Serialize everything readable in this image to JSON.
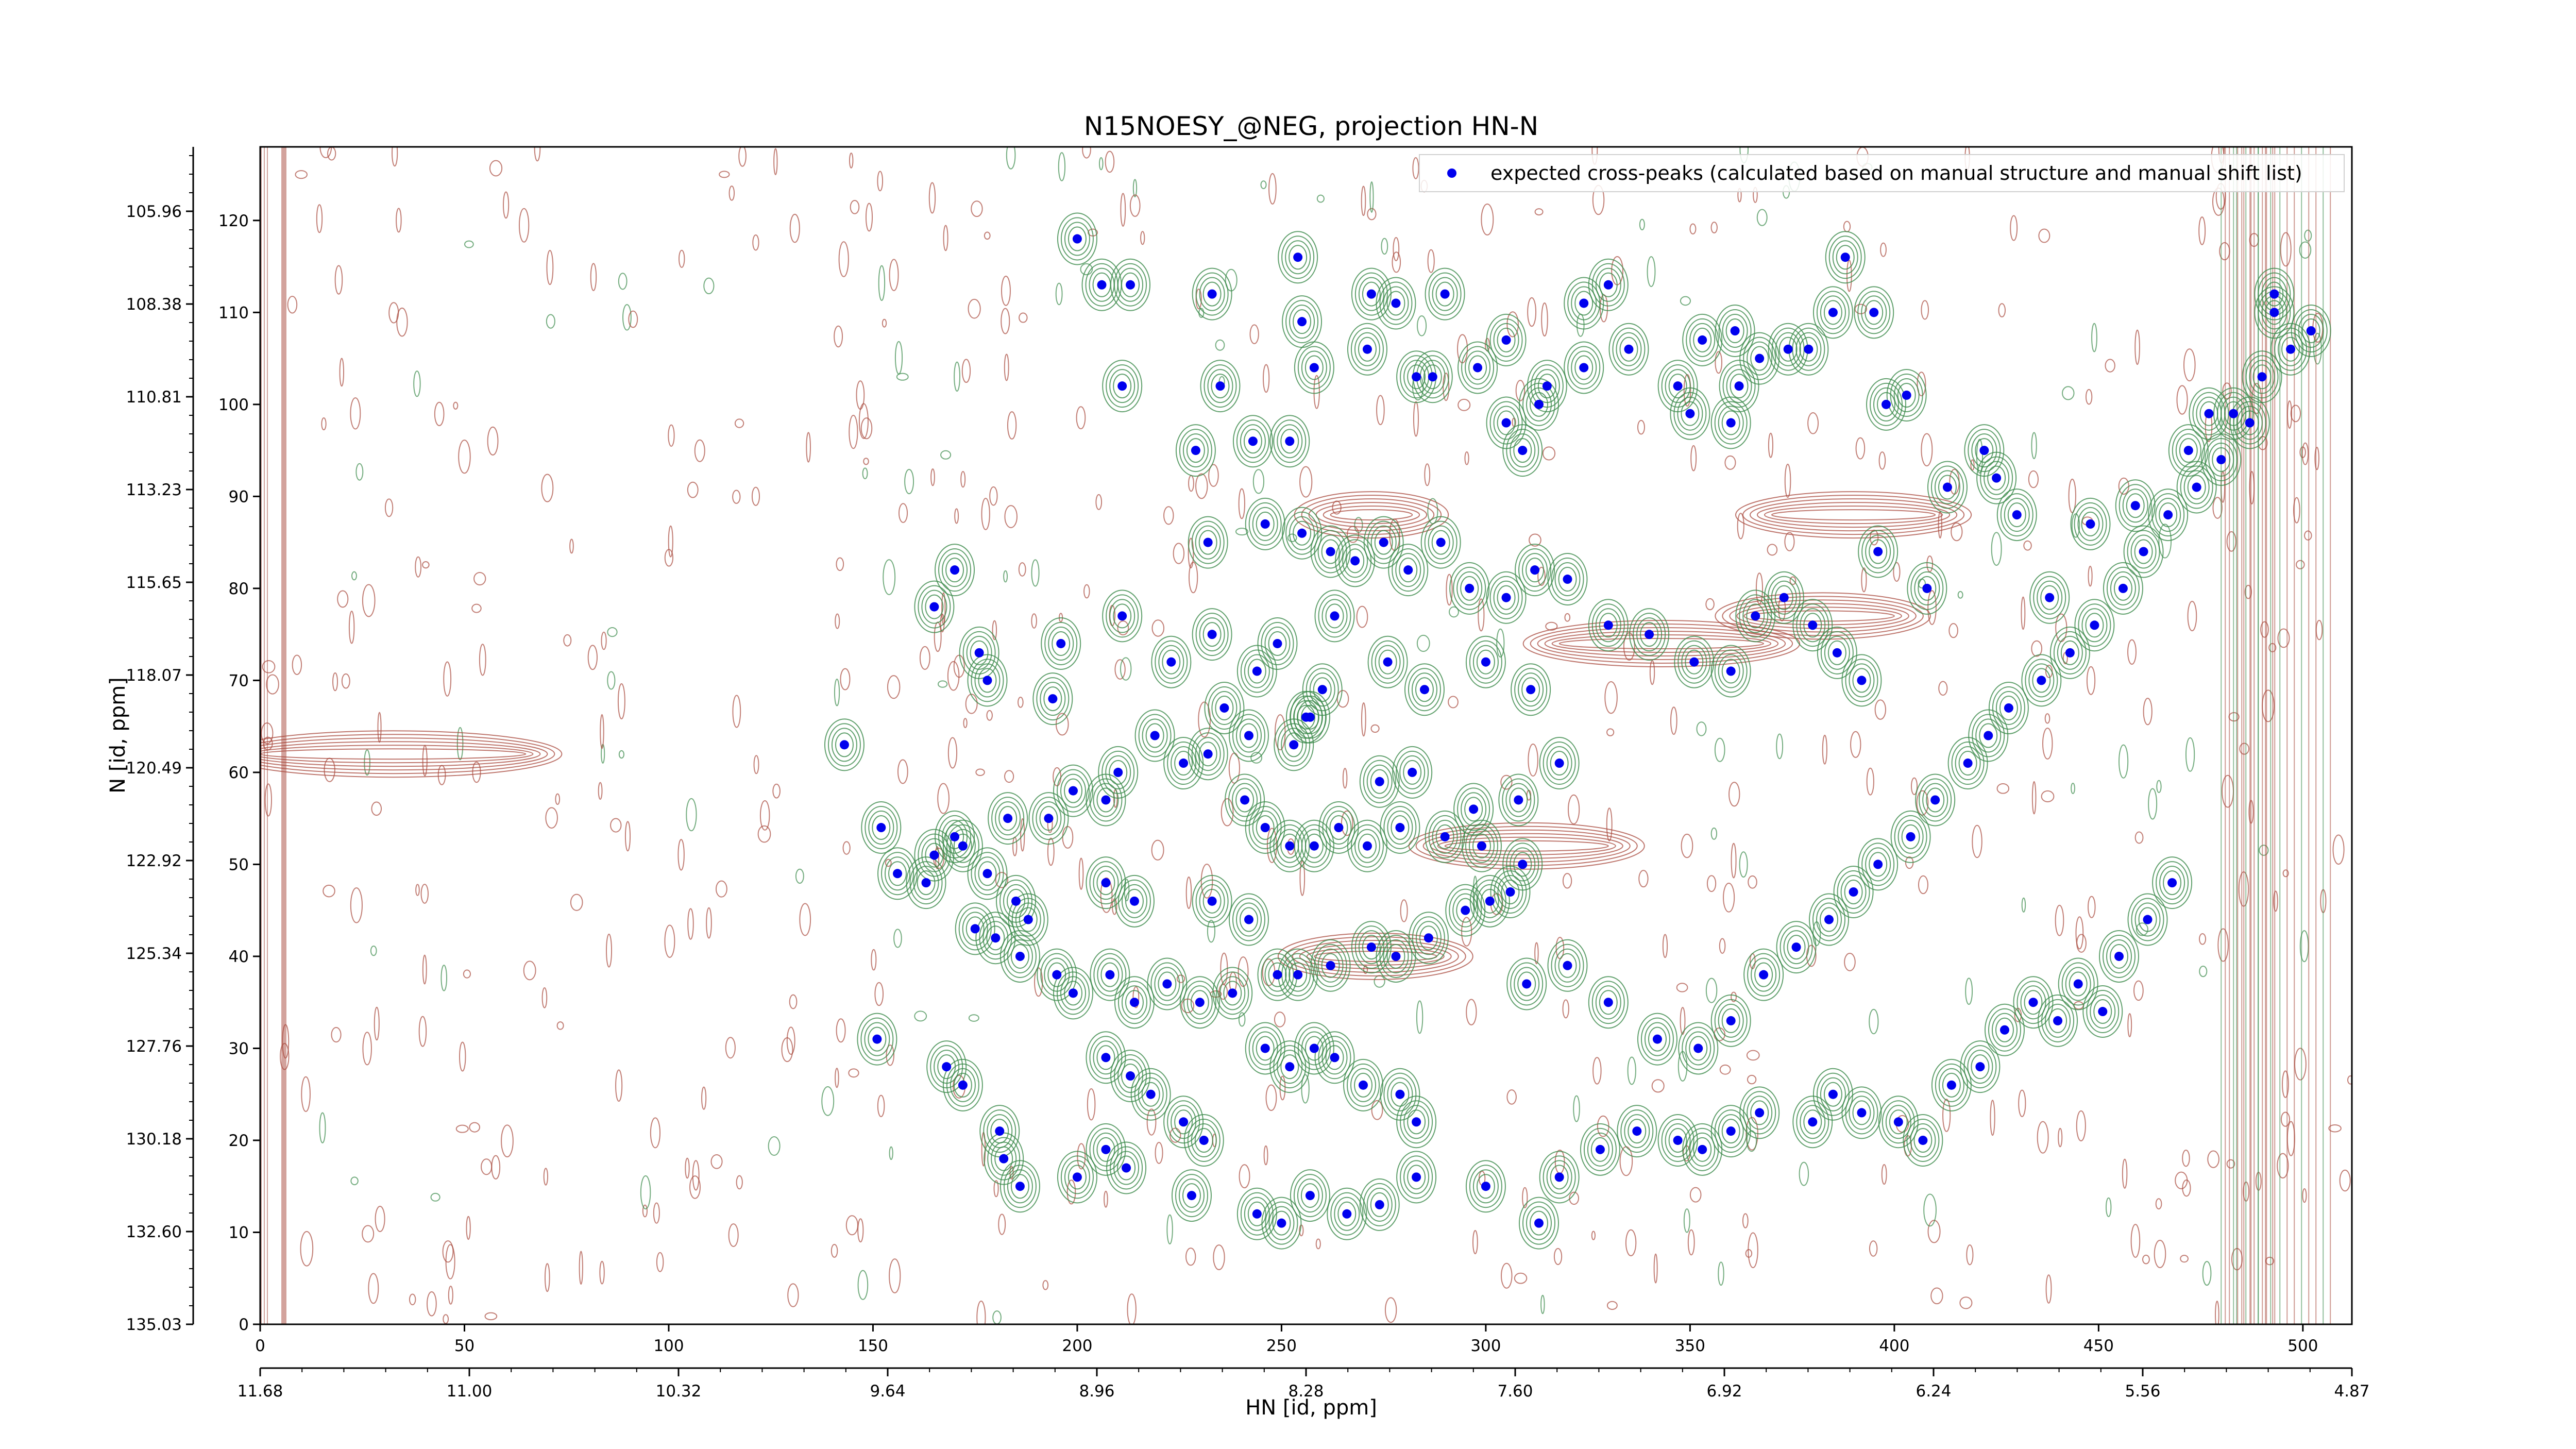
{
  "chart_data": {
    "type": "scatter",
    "title": "N15NOESY_@NEG, projection HN-N",
    "xlabel": "HN [id, ppm]",
    "ylabel": "N [id, ppm]",
    "xlim": [
      0,
      512
    ],
    "ylim": [
      0,
      128
    ],
    "x_index_ticks": [
      "0",
      "50",
      "100",
      "150",
      "200",
      "250",
      "300",
      "350",
      "400",
      "450",
      "500"
    ],
    "y_index_ticks": [
      "0",
      "10",
      "20",
      "30",
      "40",
      "50",
      "60",
      "70",
      "80",
      "90",
      "100",
      "110",
      "120"
    ],
    "x_ppm_ticks": [
      "11.68",
      "11.00",
      "10.32",
      "9.64",
      "8.96",
      "8.28",
      "7.60",
      "6.92",
      "6.24",
      "5.56",
      "4.87"
    ],
    "y_ppm_ticks": [
      "135.03",
      "132.60",
      "130.18",
      "127.76",
      "125.34",
      "122.92",
      "120.49",
      "118.07",
      "115.65",
      "113.23",
      "110.81",
      "108.38",
      "105.96"
    ],
    "legend": "top-right",
    "contour_colors": {
      "positive": "#3b8a4a",
      "negative": "#a8483c"
    },
    "series": [
      {
        "name": "expected cross-peaks (calculated based on manual structure and manual shift list)",
        "color": "#0000ee",
        "marker": "circle",
        "points": [
          [
            254,
            116
          ],
          [
            200,
            118
          ],
          [
            206,
            113
          ],
          [
            213,
            113
          ],
          [
            233,
            112
          ],
          [
            255,
            109
          ],
          [
            272,
            112
          ],
          [
            278,
            111
          ],
          [
            290,
            112
          ],
          [
            271,
            106
          ],
          [
            252,
            96
          ],
          [
            243,
            96
          ],
          [
            229,
            95
          ],
          [
            211,
            102
          ],
          [
            235,
            102
          ],
          [
            258,
            104
          ],
          [
            283,
            103
          ],
          [
            298,
            104
          ],
          [
            305,
            98
          ],
          [
            309,
            95
          ],
          [
            313,
            100
          ],
          [
            315,
            102
          ],
          [
            287,
            103
          ],
          [
            305,
            107
          ],
          [
            324,
            104
          ],
          [
            324,
            111
          ],
          [
            330,
            113
          ],
          [
            335,
            106
          ],
          [
            347,
            102
          ],
          [
            350,
            99
          ],
          [
            353,
            107
          ],
          [
            361,
            108
          ],
          [
            360,
            98
          ],
          [
            362,
            102
          ],
          [
            367,
            105
          ],
          [
            374,
            106
          ],
          [
            379,
            106
          ],
          [
            385,
            110
          ],
          [
            388,
            116
          ],
          [
            395,
            110
          ],
          [
            398,
            100
          ],
          [
            403,
            101
          ],
          [
            413,
            91
          ],
          [
            422,
            95
          ],
          [
            425,
            92
          ],
          [
            396,
            84
          ],
          [
            408,
            80
          ],
          [
            430,
            88
          ],
          [
            438,
            79
          ],
          [
            448,
            87
          ],
          [
            459,
            89
          ],
          [
            472,
            95
          ],
          [
            477,
            99
          ],
          [
            483,
            99
          ],
          [
            493,
            112
          ],
          [
            493,
            110
          ],
          [
            170,
            82
          ],
          [
            165,
            78
          ],
          [
            176,
            73
          ],
          [
            178,
            70
          ],
          [
            194,
            68
          ],
          [
            196,
            74
          ],
          [
            211,
            77
          ],
          [
            223,
            72
          ],
          [
            233,
            75
          ],
          [
            244,
            71
          ],
          [
            249,
            74
          ],
          [
            256,
            66
          ],
          [
            260,
            69
          ],
          [
            263,
            77
          ],
          [
            276,
            72
          ],
          [
            285,
            69
          ],
          [
            300,
            72
          ],
          [
            311,
            69
          ],
          [
            318,
            61
          ],
          [
            308,
            57
          ],
          [
            297,
            56
          ],
          [
            282,
            60
          ],
          [
            274,
            59
          ],
          [
            253,
            63
          ],
          [
            257,
            66
          ],
          [
            242,
            64
          ],
          [
            236,
            67
          ],
          [
            232,
            62
          ],
          [
            226,
            61
          ],
          [
            219,
            64
          ],
          [
            210,
            60
          ],
          [
            207,
            57
          ],
          [
            199,
            58
          ],
          [
            193,
            55
          ],
          [
            183,
            55
          ],
          [
            170,
            53
          ],
          [
            165,
            51
          ],
          [
            156,
            49
          ],
          [
            143,
            63
          ],
          [
            152,
            54
          ],
          [
            163,
            48
          ],
          [
            175,
            43
          ],
          [
            180,
            42
          ],
          [
            186,
            40
          ],
          [
            195,
            38
          ],
          [
            199,
            36
          ],
          [
            208,
            38
          ],
          [
            214,
            35
          ],
          [
            222,
            37
          ],
          [
            230,
            35
          ],
          [
            238,
            36
          ],
          [
            249,
            38
          ],
          [
            254,
            38
          ],
          [
            262,
            39
          ],
          [
            272,
            41
          ],
          [
            278,
            40
          ],
          [
            286,
            42
          ],
          [
            295,
            45
          ],
          [
            301,
            46
          ],
          [
            306,
            47
          ],
          [
            242,
            44
          ],
          [
            233,
            46
          ],
          [
            214,
            46
          ],
          [
            207,
            48
          ],
          [
            188,
            44
          ],
          [
            185,
            46
          ],
          [
            178,
            49
          ],
          [
            172,
            52
          ],
          [
            241,
            57
          ],
          [
            246,
            54
          ],
          [
            252,
            52
          ],
          [
            258,
            52
          ],
          [
            264,
            54
          ],
          [
            271,
            52
          ],
          [
            279,
            54
          ],
          [
            290,
            53
          ],
          [
            299,
            52
          ],
          [
            309,
            50
          ],
          [
            151,
            31
          ],
          [
            168,
            28
          ],
          [
            172,
            26
          ],
          [
            181,
            21
          ],
          [
            182,
            18
          ],
          [
            186,
            15
          ],
          [
            207,
            29
          ],
          [
            213,
            27
          ],
          [
            218,
            25
          ],
          [
            226,
            22
          ],
          [
            231,
            20
          ],
          [
            246,
            30
          ],
          [
            252,
            28
          ],
          [
            258,
            30
          ],
          [
            263,
            29
          ],
          [
            270,
            26
          ],
          [
            279,
            25
          ],
          [
            283,
            22
          ],
          [
            200,
            16
          ],
          [
            207,
            19
          ],
          [
            212,
            17
          ],
          [
            228,
            14
          ],
          [
            244,
            12
          ],
          [
            250,
            11
          ],
          [
            257,
            14
          ],
          [
            266,
            12
          ],
          [
            274,
            13
          ],
          [
            283,
            16
          ],
          [
            300,
            15
          ],
          [
            313,
            11
          ],
          [
            318,
            16
          ],
          [
            328,
            19
          ],
          [
            337,
            21
          ],
          [
            347,
            20
          ],
          [
            353,
            19
          ],
          [
            360,
            21
          ],
          [
            367,
            23
          ],
          [
            380,
            22
          ],
          [
            385,
            25
          ],
          [
            392,
            23
          ],
          [
            401,
            22
          ],
          [
            407,
            20
          ],
          [
            414,
            26
          ],
          [
            421,
            28
          ],
          [
            427,
            32
          ],
          [
            434,
            35
          ],
          [
            440,
            33
          ],
          [
            445,
            37
          ],
          [
            451,
            34
          ],
          [
            455,
            40
          ],
          [
            462,
            44
          ],
          [
            468,
            48
          ],
          [
            232,
            85
          ],
          [
            246,
            87
          ],
          [
            255,
            86
          ],
          [
            262,
            84
          ],
          [
            268,
            83
          ],
          [
            275,
            85
          ],
          [
            281,
            82
          ],
          [
            289,
            85
          ],
          [
            296,
            80
          ],
          [
            305,
            79
          ],
          [
            312,
            82
          ],
          [
            320,
            81
          ],
          [
            330,
            76
          ],
          [
            340,
            75
          ],
          [
            351,
            72
          ],
          [
            360,
            71
          ],
          [
            366,
            77
          ],
          [
            373,
            79
          ],
          [
            380,
            76
          ],
          [
            386,
            73
          ],
          [
            392,
            70
          ],
          [
            310,
            37
          ],
          [
            320,
            39
          ],
          [
            330,
            35
          ],
          [
            342,
            31
          ],
          [
            352,
            30
          ],
          [
            360,
            33
          ],
          [
            368,
            38
          ],
          [
            376,
            41
          ],
          [
            384,
            44
          ],
          [
            390,
            47
          ],
          [
            396,
            50
          ],
          [
            404,
            53
          ],
          [
            410,
            57
          ],
          [
            418,
            61
          ],
          [
            423,
            64
          ],
          [
            428,
            67
          ],
          [
            436,
            70
          ],
          [
            443,
            73
          ],
          [
            449,
            76
          ],
          [
            456,
            80
          ],
          [
            461,
            84
          ],
          [
            467,
            88
          ],
          [
            474,
            91
          ],
          [
            480,
            94
          ],
          [
            487,
            98
          ],
          [
            490,
            103
          ],
          [
            497,
            106
          ],
          [
            502,
            108
          ]
        ]
      }
    ]
  }
}
